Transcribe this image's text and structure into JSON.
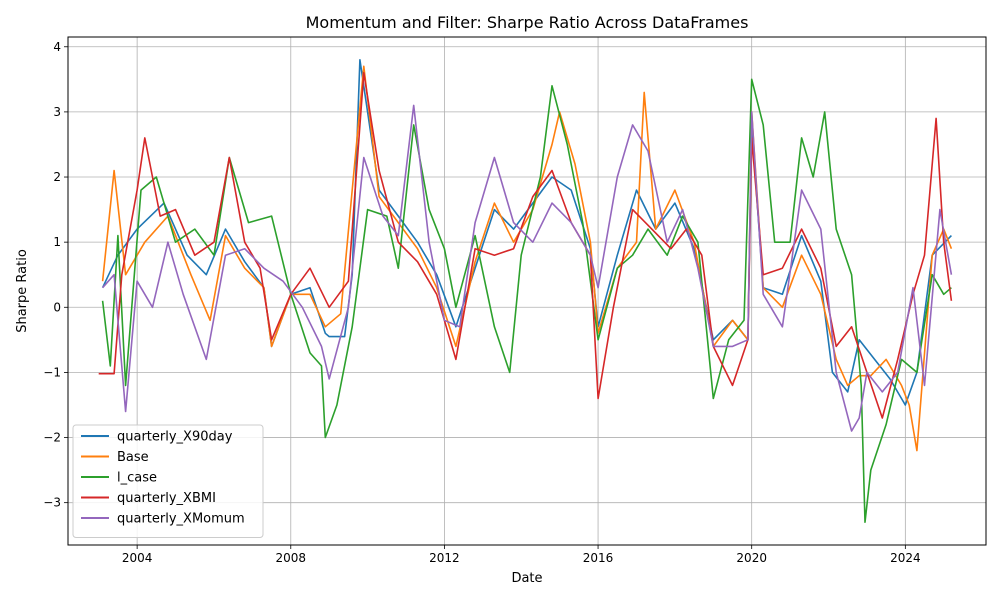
{
  "chart_data": {
    "type": "line",
    "title": "Momentum and Filter: Sharpe Ratio Across DataFrames",
    "xlabel": "Date",
    "ylabel": "Sharpe Ratio",
    "xlim": [
      2002.2,
      2026.1
    ],
    "ylim": [
      -3.65,
      4.15
    ],
    "x_ticks": [
      2004,
      2008,
      2012,
      2016,
      2020,
      2024
    ],
    "x_tick_labels": [
      "2004",
      "2008",
      "2012",
      "2016",
      "2020",
      "2024"
    ],
    "y_ticks": [
      -3,
      -2,
      -1,
      0,
      1,
      2,
      3,
      4
    ],
    "y_tick_labels": [
      "−3",
      "−2",
      "−1",
      "0",
      "1",
      "2",
      "3",
      "4"
    ],
    "grid": true,
    "legend_position": "lower-left",
    "x_unit": "year",
    "series": [
      {
        "name": "quarterly_X90day",
        "color": "#1f77b4",
        "points": [
          [
            2003.1,
            0.3
          ],
          [
            2003.5,
            0.8
          ],
          [
            2004.0,
            1.2
          ],
          [
            2004.7,
            1.6
          ],
          [
            2005.3,
            0.8
          ],
          [
            2005.8,
            0.5
          ],
          [
            2006.3,
            1.2
          ],
          [
            2006.8,
            0.7
          ],
          [
            2007.3,
            0.3
          ],
          [
            2007.5,
            -0.6
          ],
          [
            2008.0,
            0.2
          ],
          [
            2008.5,
            0.3
          ],
          [
            2008.9,
            -0.4
          ],
          [
            2009.0,
            -0.45
          ],
          [
            2009.4,
            -0.45
          ],
          [
            2009.6,
            0.5
          ],
          [
            2009.8,
            3.8
          ],
          [
            2010.3,
            1.8
          ],
          [
            2010.8,
            1.4
          ],
          [
            2011.3,
            1.0
          ],
          [
            2011.8,
            0.5
          ],
          [
            2012.3,
            -0.3
          ],
          [
            2012.8,
            0.6
          ],
          [
            2013.3,
            1.5
          ],
          [
            2013.8,
            1.2
          ],
          [
            2014.3,
            1.6
          ],
          [
            2014.8,
            2.0
          ],
          [
            2015.3,
            1.8
          ],
          [
            2015.8,
            0.9
          ],
          [
            2016.0,
            -0.3
          ],
          [
            2016.5,
            0.8
          ],
          [
            2017.0,
            1.8
          ],
          [
            2017.5,
            1.2
          ],
          [
            2018.0,
            1.6
          ],
          [
            2018.5,
            0.9
          ],
          [
            2019.0,
            -0.5
          ],
          [
            2019.5,
            -0.2
          ],
          [
            2019.9,
            -0.5
          ],
          [
            2020.0,
            2.8
          ],
          [
            2020.3,
            0.3
          ],
          [
            2020.8,
            0.2
          ],
          [
            2021.3,
            1.1
          ],
          [
            2021.8,
            0.4
          ],
          [
            2022.1,
            -1.0
          ],
          [
            2022.5,
            -1.3
          ],
          [
            2022.8,
            -0.5
          ],
          [
            2023.2,
            -0.8
          ],
          [
            2023.6,
            -1.1
          ],
          [
            2024.0,
            -1.5
          ],
          [
            2024.3,
            -1.0
          ],
          [
            2024.7,
            0.8
          ],
          [
            2025.2,
            1.1
          ]
        ]
      },
      {
        "name": "Base",
        "color": "#ff7f0e",
        "points": [
          [
            2003.1,
            0.4
          ],
          [
            2003.4,
            2.1
          ],
          [
            2003.7,
            0.5
          ],
          [
            2004.2,
            1.0
          ],
          [
            2004.8,
            1.4
          ],
          [
            2005.4,
            0.5
          ],
          [
            2005.9,
            -0.2
          ],
          [
            2006.3,
            1.1
          ],
          [
            2006.8,
            0.6
          ],
          [
            2007.3,
            0.3
          ],
          [
            2007.5,
            -0.6
          ],
          [
            2008.0,
            0.2
          ],
          [
            2008.5,
            0.2
          ],
          [
            2008.9,
            -0.3
          ],
          [
            2009.3,
            -0.1
          ],
          [
            2009.6,
            1.8
          ],
          [
            2009.9,
            3.7
          ],
          [
            2010.3,
            1.7
          ],
          [
            2010.8,
            1.3
          ],
          [
            2011.3,
            0.9
          ],
          [
            2011.8,
            0.3
          ],
          [
            2012.3,
            -0.6
          ],
          [
            2012.8,
            0.7
          ],
          [
            2013.3,
            1.6
          ],
          [
            2013.8,
            1.0
          ],
          [
            2014.3,
            1.5
          ],
          [
            2014.8,
            2.5
          ],
          [
            2015.0,
            3.0
          ],
          [
            2015.4,
            2.2
          ],
          [
            2015.8,
            1.0
          ],
          [
            2016.0,
            -0.4
          ],
          [
            2016.5,
            0.6
          ],
          [
            2017.0,
            1.0
          ],
          [
            2017.2,
            3.3
          ],
          [
            2017.5,
            1.2
          ],
          [
            2018.0,
            1.8
          ],
          [
            2018.5,
            1.0
          ],
          [
            2019.0,
            -0.6
          ],
          [
            2019.5,
            -0.2
          ],
          [
            2019.9,
            -0.5
          ],
          [
            2020.0,
            3.0
          ],
          [
            2020.3,
            0.3
          ],
          [
            2020.8,
            0.0
          ],
          [
            2021.3,
            0.8
          ],
          [
            2021.8,
            0.2
          ],
          [
            2022.2,
            -0.8
          ],
          [
            2022.5,
            -1.2
          ],
          [
            2022.8,
            -1.05
          ],
          [
            2023.1,
            -1.05
          ],
          [
            2023.5,
            -0.8
          ],
          [
            2023.9,
            -1.2
          ],
          [
            2024.1,
            -1.5
          ],
          [
            2024.3,
            -2.2
          ],
          [
            2024.7,
            0.8
          ],
          [
            2025.0,
            1.2
          ],
          [
            2025.2,
            0.9
          ]
        ]
      },
      {
        "name": "l_case",
        "color": "#2ca02c",
        "points": [
          [
            2003.1,
            0.1
          ],
          [
            2003.3,
            -0.9
          ],
          [
            2003.5,
            1.1
          ],
          [
            2003.7,
            -1.2
          ],
          [
            2004.1,
            1.8
          ],
          [
            2004.5,
            2.0
          ],
          [
            2005.0,
            1.0
          ],
          [
            2005.5,
            1.2
          ],
          [
            2006.0,
            0.8
          ],
          [
            2006.4,
            2.3
          ],
          [
            2006.9,
            1.3
          ],
          [
            2007.5,
            1.4
          ],
          [
            2008.0,
            0.2
          ],
          [
            2008.5,
            -0.7
          ],
          [
            2008.8,
            -0.9
          ],
          [
            2008.9,
            -2.0
          ],
          [
            2009.2,
            -1.5
          ],
          [
            2009.6,
            -0.3
          ],
          [
            2010.0,
            1.5
          ],
          [
            2010.5,
            1.4
          ],
          [
            2010.8,
            0.6
          ],
          [
            2011.2,
            2.8
          ],
          [
            2011.6,
            1.5
          ],
          [
            2012.0,
            0.9
          ],
          [
            2012.3,
            0.0
          ],
          [
            2012.8,
            1.1
          ],
          [
            2013.3,
            -0.3
          ],
          [
            2013.7,
            -1.0
          ],
          [
            2014.0,
            0.8
          ],
          [
            2014.5,
            2.0
          ],
          [
            2014.8,
            3.4
          ],
          [
            2015.2,
            2.5
          ],
          [
            2015.6,
            1.3
          ],
          [
            2016.0,
            -0.5
          ],
          [
            2016.5,
            0.6
          ],
          [
            2016.9,
            0.8
          ],
          [
            2017.3,
            1.2
          ],
          [
            2017.8,
            0.8
          ],
          [
            2018.2,
            1.4
          ],
          [
            2018.6,
            1.0
          ],
          [
            2019.0,
            -1.4
          ],
          [
            2019.4,
            -0.5
          ],
          [
            2019.8,
            -0.2
          ],
          [
            2020.0,
            3.5
          ],
          [
            2020.3,
            2.8
          ],
          [
            2020.6,
            1.0
          ],
          [
            2021.0,
            1.0
          ],
          [
            2021.3,
            2.6
          ],
          [
            2021.6,
            2.0
          ],
          [
            2021.9,
            3.0
          ],
          [
            2022.2,
            1.2
          ],
          [
            2022.6,
            0.5
          ],
          [
            2022.85,
            -1.2
          ],
          [
            2022.95,
            -3.3
          ],
          [
            2023.1,
            -2.5
          ],
          [
            2023.5,
            -1.8
          ],
          [
            2023.9,
            -0.8
          ],
          [
            2024.3,
            -1.0
          ],
          [
            2024.7,
            0.5
          ],
          [
            2025.0,
            0.2
          ],
          [
            2025.2,
            0.3
          ]
        ]
      },
      {
        "name": "quarterly_XBMI",
        "color": "#d62728",
        "points": [
          [
            2003.0,
            -1.02
          ],
          [
            2003.4,
            -1.02
          ],
          [
            2003.6,
            0.5
          ],
          [
            2004.0,
            1.8
          ],
          [
            2004.2,
            2.6
          ],
          [
            2004.6,
            1.4
          ],
          [
            2005.0,
            1.5
          ],
          [
            2005.5,
            0.8
          ],
          [
            2006.0,
            1.0
          ],
          [
            2006.4,
            2.3
          ],
          [
            2006.8,
            1.0
          ],
          [
            2007.2,
            0.6
          ],
          [
            2007.5,
            -0.5
          ],
          [
            2008.0,
            0.2
          ],
          [
            2008.5,
            0.6
          ],
          [
            2009.0,
            0.0
          ],
          [
            2009.5,
            0.4
          ],
          [
            2009.9,
            3.6
          ],
          [
            2010.3,
            2.1
          ],
          [
            2010.8,
            1.0
          ],
          [
            2011.3,
            0.7
          ],
          [
            2011.8,
            0.2
          ],
          [
            2012.3,
            -0.8
          ],
          [
            2012.8,
            0.9
          ],
          [
            2013.3,
            0.8
          ],
          [
            2013.8,
            0.9
          ],
          [
            2014.3,
            1.7
          ],
          [
            2014.8,
            2.1
          ],
          [
            2015.3,
            1.3
          ],
          [
            2015.8,
            0.8
          ],
          [
            2016.0,
            -1.4
          ],
          [
            2016.4,
            0.0
          ],
          [
            2016.9,
            1.5
          ],
          [
            2017.4,
            1.2
          ],
          [
            2017.9,
            0.9
          ],
          [
            2018.3,
            1.2
          ],
          [
            2018.7,
            0.8
          ],
          [
            2019.0,
            -0.6
          ],
          [
            2019.5,
            -1.2
          ],
          [
            2019.9,
            -0.5
          ],
          [
            2020.0,
            2.6
          ],
          [
            2020.3,
            0.5
          ],
          [
            2020.8,
            0.6
          ],
          [
            2021.3,
            1.2
          ],
          [
            2021.8,
            0.6
          ],
          [
            2022.2,
            -0.6
          ],
          [
            2022.6,
            -0.3
          ],
          [
            2023.0,
            -1.0
          ],
          [
            2023.4,
            -1.7
          ],
          [
            2023.8,
            -0.8
          ],
          [
            2024.2,
            0.2
          ],
          [
            2024.5,
            0.8
          ],
          [
            2024.8,
            2.9
          ],
          [
            2025.0,
            1.0
          ],
          [
            2025.2,
            0.1
          ]
        ]
      },
      {
        "name": "quarterly_XMomum",
        "color": "#9467bd",
        "points": [
          [
            2003.1,
            0.3
          ],
          [
            2003.4,
            0.5
          ],
          [
            2003.7,
            -1.6
          ],
          [
            2004.0,
            0.4
          ],
          [
            2004.4,
            0.0
          ],
          [
            2004.8,
            1.0
          ],
          [
            2005.2,
            0.2
          ],
          [
            2005.8,
            -0.8
          ],
          [
            2006.3,
            0.8
          ],
          [
            2006.8,
            0.9
          ],
          [
            2007.3,
            0.6
          ],
          [
            2007.8,
            0.4
          ],
          [
            2008.3,
            0.0
          ],
          [
            2008.8,
            -0.6
          ],
          [
            2009.0,
            -1.1
          ],
          [
            2009.5,
            0.0
          ],
          [
            2009.9,
            2.3
          ],
          [
            2010.4,
            1.4
          ],
          [
            2010.8,
            1.1
          ],
          [
            2011.2,
            3.1
          ],
          [
            2011.6,
            1.0
          ],
          [
            2012.0,
            -0.2
          ],
          [
            2012.4,
            -0.3
          ],
          [
            2012.8,
            1.3
          ],
          [
            2013.3,
            2.3
          ],
          [
            2013.8,
            1.3
          ],
          [
            2014.3,
            1.0
          ],
          [
            2014.8,
            1.6
          ],
          [
            2015.3,
            1.3
          ],
          [
            2015.8,
            0.8
          ],
          [
            2016.0,
            0.3
          ],
          [
            2016.5,
            2.0
          ],
          [
            2016.9,
            2.8
          ],
          [
            2017.3,
            2.4
          ],
          [
            2017.8,
            1.0
          ],
          [
            2018.2,
            1.5
          ],
          [
            2018.6,
            0.6
          ],
          [
            2019.0,
            -0.6
          ],
          [
            2019.5,
            -0.6
          ],
          [
            2019.9,
            -0.5
          ],
          [
            2020.0,
            3.0
          ],
          [
            2020.3,
            0.2
          ],
          [
            2020.8,
            -0.3
          ],
          [
            2021.3,
            1.8
          ],
          [
            2021.8,
            1.2
          ],
          [
            2022.2,
            -1.0
          ],
          [
            2022.6,
            -1.9
          ],
          [
            2022.8,
            -1.7
          ],
          [
            2023.0,
            -1.0
          ],
          [
            2023.4,
            -1.3
          ],
          [
            2023.8,
            -1.0
          ],
          [
            2024.2,
            0.3
          ],
          [
            2024.5,
            -1.2
          ],
          [
            2024.9,
            1.5
          ],
          [
            2025.2,
            0.5
          ]
        ]
      }
    ]
  }
}
